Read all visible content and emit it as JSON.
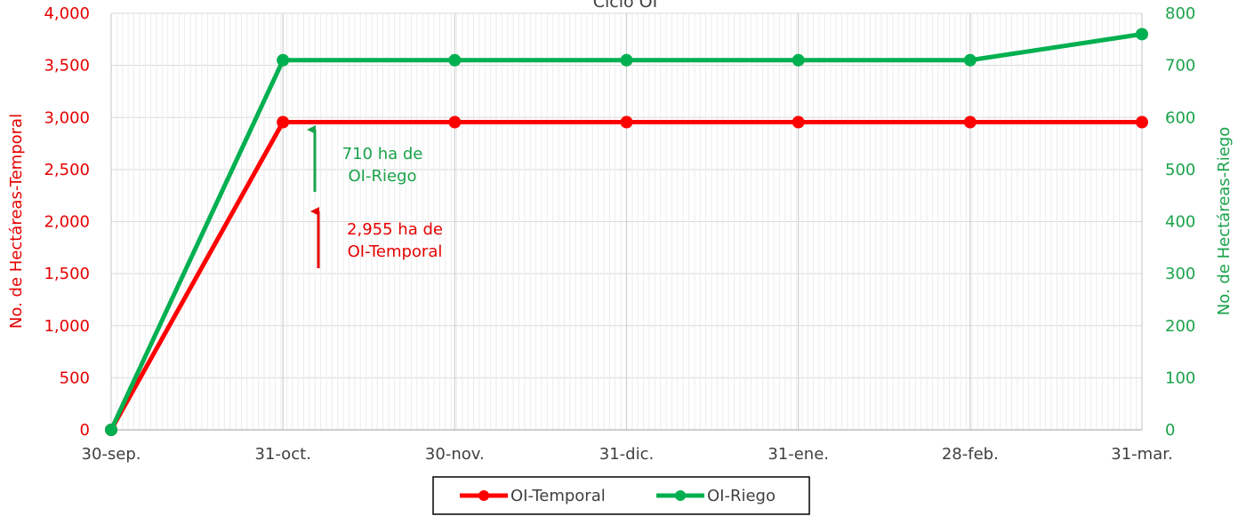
{
  "chart_data": {
    "type": "line",
    "title": "Ciclo OI",
    "categories": [
      "30-sep.",
      "31-oct.",
      "30-nov.",
      "31-dic.",
      "31-ene.",
      "28-feb.",
      "31-mar."
    ],
    "series": [
      {
        "name": "OI-Temporal",
        "axis": "left",
        "color": "#ff0000",
        "values": [
          0,
          2955,
          2955,
          2955,
          2955,
          2955,
          2955
        ]
      },
      {
        "name": "OI-Riego",
        "axis": "right",
        "color": "#00b050",
        "values": [
          0,
          710,
          710,
          710,
          710,
          710,
          760
        ]
      }
    ],
    "ylabel_left": "No. de Hectáreas-Temporal",
    "ylabel_right": "No. de Hectáreas-Riego",
    "ylim_left": [
      0,
      4000
    ],
    "ylim_right": [
      0,
      800
    ],
    "yticks_left": [
      "0",
      "500",
      "1,000",
      "1,500",
      "2,000",
      "2,500",
      "3,000",
      "3,500",
      "4,000"
    ],
    "yticks_right": [
      "0",
      "100",
      "200",
      "300",
      "400",
      "500",
      "600",
      "700",
      "800"
    ],
    "grid": true,
    "legend_position": "bottom",
    "annotations": [
      {
        "series": "OI-Riego",
        "lines": [
          "710 ha de",
          "OI-Riego"
        ]
      },
      {
        "series": "OI-Temporal",
        "lines": [
          "2,955 ha de",
          "OI-Temporal"
        ]
      }
    ]
  }
}
